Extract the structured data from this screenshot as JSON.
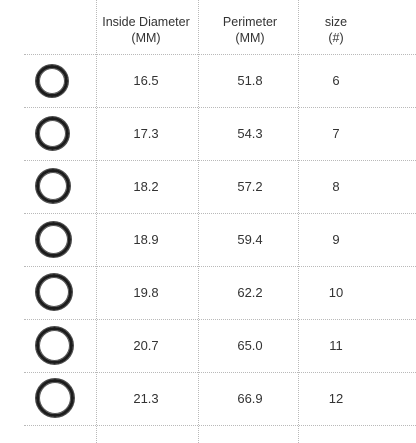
{
  "header": {
    "inside_diameter": {
      "line1": "Inside Diameter",
      "line2": "(MM)"
    },
    "perimeter": {
      "line1": "Perimeter",
      "line2": "(MM)"
    },
    "size": {
      "line1": "size",
      "line2": "(#)"
    }
  },
  "rows": [
    {
      "inside_diameter": "16.5",
      "perimeter": "51.8",
      "size": "6"
    },
    {
      "inside_diameter": "17.3",
      "perimeter": "54.3",
      "size": "7"
    },
    {
      "inside_diameter": "18.2",
      "perimeter": "57.2",
      "size": "8"
    },
    {
      "inside_diameter": "18.9",
      "perimeter": "59.4",
      "size": "9"
    },
    {
      "inside_diameter": "19.8",
      "perimeter": "62.2",
      "size": "10"
    },
    {
      "inside_diameter": "20.7",
      "perimeter": "65.0",
      "size": "11"
    },
    {
      "inside_diameter": "21.3",
      "perimeter": "66.9",
      "size": "12"
    }
  ],
  "colors": {
    "ring": "#1c1c1c",
    "grid": "#b9b9b9",
    "text": "#333333"
  },
  "icons": {
    "row_marker": "ring-icon"
  }
}
